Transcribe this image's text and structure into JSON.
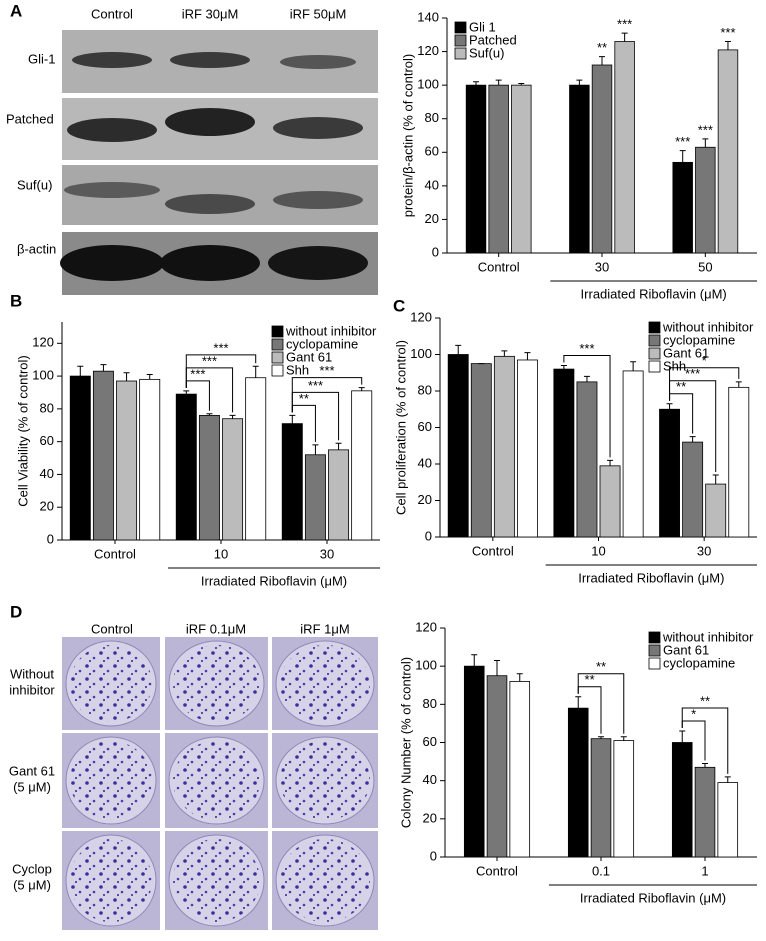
{
  "figure": {
    "panel_labels": [
      "A",
      "B",
      "C",
      "D"
    ],
    "blot": {
      "lanes": [
        "Control",
        "iRF 30μM",
        "iRF 50μM"
      ],
      "rows": [
        "Gli-1",
        "Patched",
        "Suf(u)",
        "β-actin"
      ]
    },
    "colony": {
      "columns": [
        "Control",
        "iRF 0.1μM",
        "iRF 1μM"
      ],
      "rows": [
        [
          "Without",
          "inhibitor"
        ],
        [
          "Gant 61",
          "(5 μM)"
        ],
        [
          "Cyclop",
          "(5 μM)"
        ]
      ]
    }
  },
  "chart_data": [
    {
      "type": "bar",
      "y_label": "protein/β-actin (% of control)",
      "group_label": "Irradiated Riboflavin (μM)",
      "categories": [
        "Control",
        "30",
        "50"
      ],
      "ylim": [
        0,
        140
      ],
      "yticks": [
        0,
        20,
        40,
        60,
        80,
        100,
        120,
        140
      ],
      "legend": "upper left",
      "series": [
        {
          "name": "Gli 1",
          "color": "#000000",
          "values": [
            100,
            100,
            54
          ],
          "errors": [
            2,
            3,
            7
          ],
          "significance": [
            null,
            null,
            "***"
          ]
        },
        {
          "name": "Patched",
          "color": "#777777",
          "values": [
            100,
            112,
            63
          ],
          "errors": [
            3,
            5,
            5
          ],
          "significance": [
            null,
            "**",
            "***"
          ]
        },
        {
          "name": "Suf(u)",
          "color": "#bbbbbb",
          "values": [
            100,
            126,
            121
          ],
          "errors": [
            1,
            5,
            5
          ],
          "significance": [
            null,
            "***",
            "***"
          ]
        }
      ]
    },
    {
      "type": "bar",
      "y_label": "Cell Viability (% of control)",
      "group_label": "Irradiated Riboflavin (μM)",
      "categories": [
        "Control",
        "10",
        "30"
      ],
      "ylim": [
        0,
        133
      ],
      "yticks": [
        0,
        20,
        40,
        60,
        80,
        100,
        120
      ],
      "legend": "upper right",
      "series": [
        {
          "name": "without inhibitor",
          "color": "#000000",
          "values": [
            100,
            89,
            71
          ],
          "errors": [
            6,
            2,
            5
          ]
        },
        {
          "name": "cyclopamine",
          "color": "#777777",
          "values": [
            103,
            76,
            52
          ],
          "errors": [
            4,
            1,
            6
          ]
        },
        {
          "name": "Gant 61",
          "color": "#bbbbbb",
          "values": [
            97,
            74,
            55
          ],
          "errors": [
            5,
            2,
            4
          ]
        },
        {
          "name": "Shh",
          "color": "#ffffff",
          "values": [
            98,
            99,
            91
          ],
          "errors": [
            3,
            7,
            2
          ]
        }
      ],
      "comparisons": [
        {
          "category": 1,
          "series": [
            0,
            1
          ],
          "text": "***"
        },
        {
          "category": 1,
          "series": [
            0,
            2
          ],
          "text": "***"
        },
        {
          "category": 1,
          "series": [
            0,
            3
          ],
          "text": "***"
        },
        {
          "category": 2,
          "series": [
            0,
            1
          ],
          "text": "**"
        },
        {
          "category": 2,
          "series": [
            0,
            2
          ],
          "text": "***"
        },
        {
          "category": 2,
          "series": [
            0,
            3
          ],
          "text": "***"
        }
      ]
    },
    {
      "type": "bar",
      "y_label": "Cell proliferation (% of control)",
      "group_label": "Irradiated Riboflavin (μM)",
      "categories": [
        "Control",
        "10",
        "30"
      ],
      "ylim": [
        0,
        120
      ],
      "yticks": [
        0,
        20,
        40,
        60,
        80,
        100,
        120
      ],
      "legend": "upper right",
      "series": [
        {
          "name": "without inhibitor",
          "color": "#000000",
          "values": [
            100,
            92,
            70
          ],
          "errors": [
            5,
            2,
            3
          ]
        },
        {
          "name": "cyclopamine",
          "color": "#777777",
          "values": [
            95,
            85,
            52
          ],
          "errors": [
            0,
            3,
            3
          ]
        },
        {
          "name": "Gant 61",
          "color": "#bbbbbb",
          "values": [
            99,
            39,
            29
          ],
          "errors": [
            3,
            3,
            5
          ]
        },
        {
          "name": "Shh",
          "color": "#ffffff",
          "values": [
            97,
            91,
            82
          ],
          "errors": [
            4,
            5,
            3
          ]
        }
      ],
      "comparisons": [
        {
          "category": 1,
          "series": [
            0,
            2
          ],
          "text": "***"
        },
        {
          "category": 2,
          "series": [
            0,
            1
          ],
          "text": "**"
        },
        {
          "category": 2,
          "series": [
            0,
            2
          ],
          "text": "***"
        },
        {
          "category": 2,
          "series": [
            0,
            3
          ],
          "text": "*"
        }
      ]
    },
    {
      "type": "bar",
      "y_label": "Colony Number (% of control)",
      "group_label": "Irradiated Riboflavin (μM)",
      "categories": [
        "Control",
        "0.1",
        "1"
      ],
      "ylim": [
        0,
        120
      ],
      "yticks": [
        0,
        20,
        40,
        60,
        80,
        100,
        120
      ],
      "legend": "upper right",
      "series": [
        {
          "name": "without inhibitor",
          "color": "#000000",
          "values": [
            100,
            78,
            60
          ],
          "errors": [
            6,
            6,
            6
          ]
        },
        {
          "name": "Gant 61",
          "color": "#777777",
          "values": [
            95,
            62,
            47
          ],
          "errors": [
            8,
            1,
            2
          ]
        },
        {
          "name": "cyclopamine",
          "color": "#ffffff",
          "values": [
            92,
            61,
            39
          ],
          "errors": [
            4,
            2,
            3
          ]
        }
      ],
      "comparisons": [
        {
          "category": 1,
          "series": [
            0,
            1
          ],
          "text": "**"
        },
        {
          "category": 1,
          "series": [
            0,
            2
          ],
          "text": "**"
        },
        {
          "category": 2,
          "series": [
            0,
            1
          ],
          "text": "*"
        },
        {
          "category": 2,
          "series": [
            0,
            2
          ],
          "text": "**"
        }
      ]
    }
  ]
}
